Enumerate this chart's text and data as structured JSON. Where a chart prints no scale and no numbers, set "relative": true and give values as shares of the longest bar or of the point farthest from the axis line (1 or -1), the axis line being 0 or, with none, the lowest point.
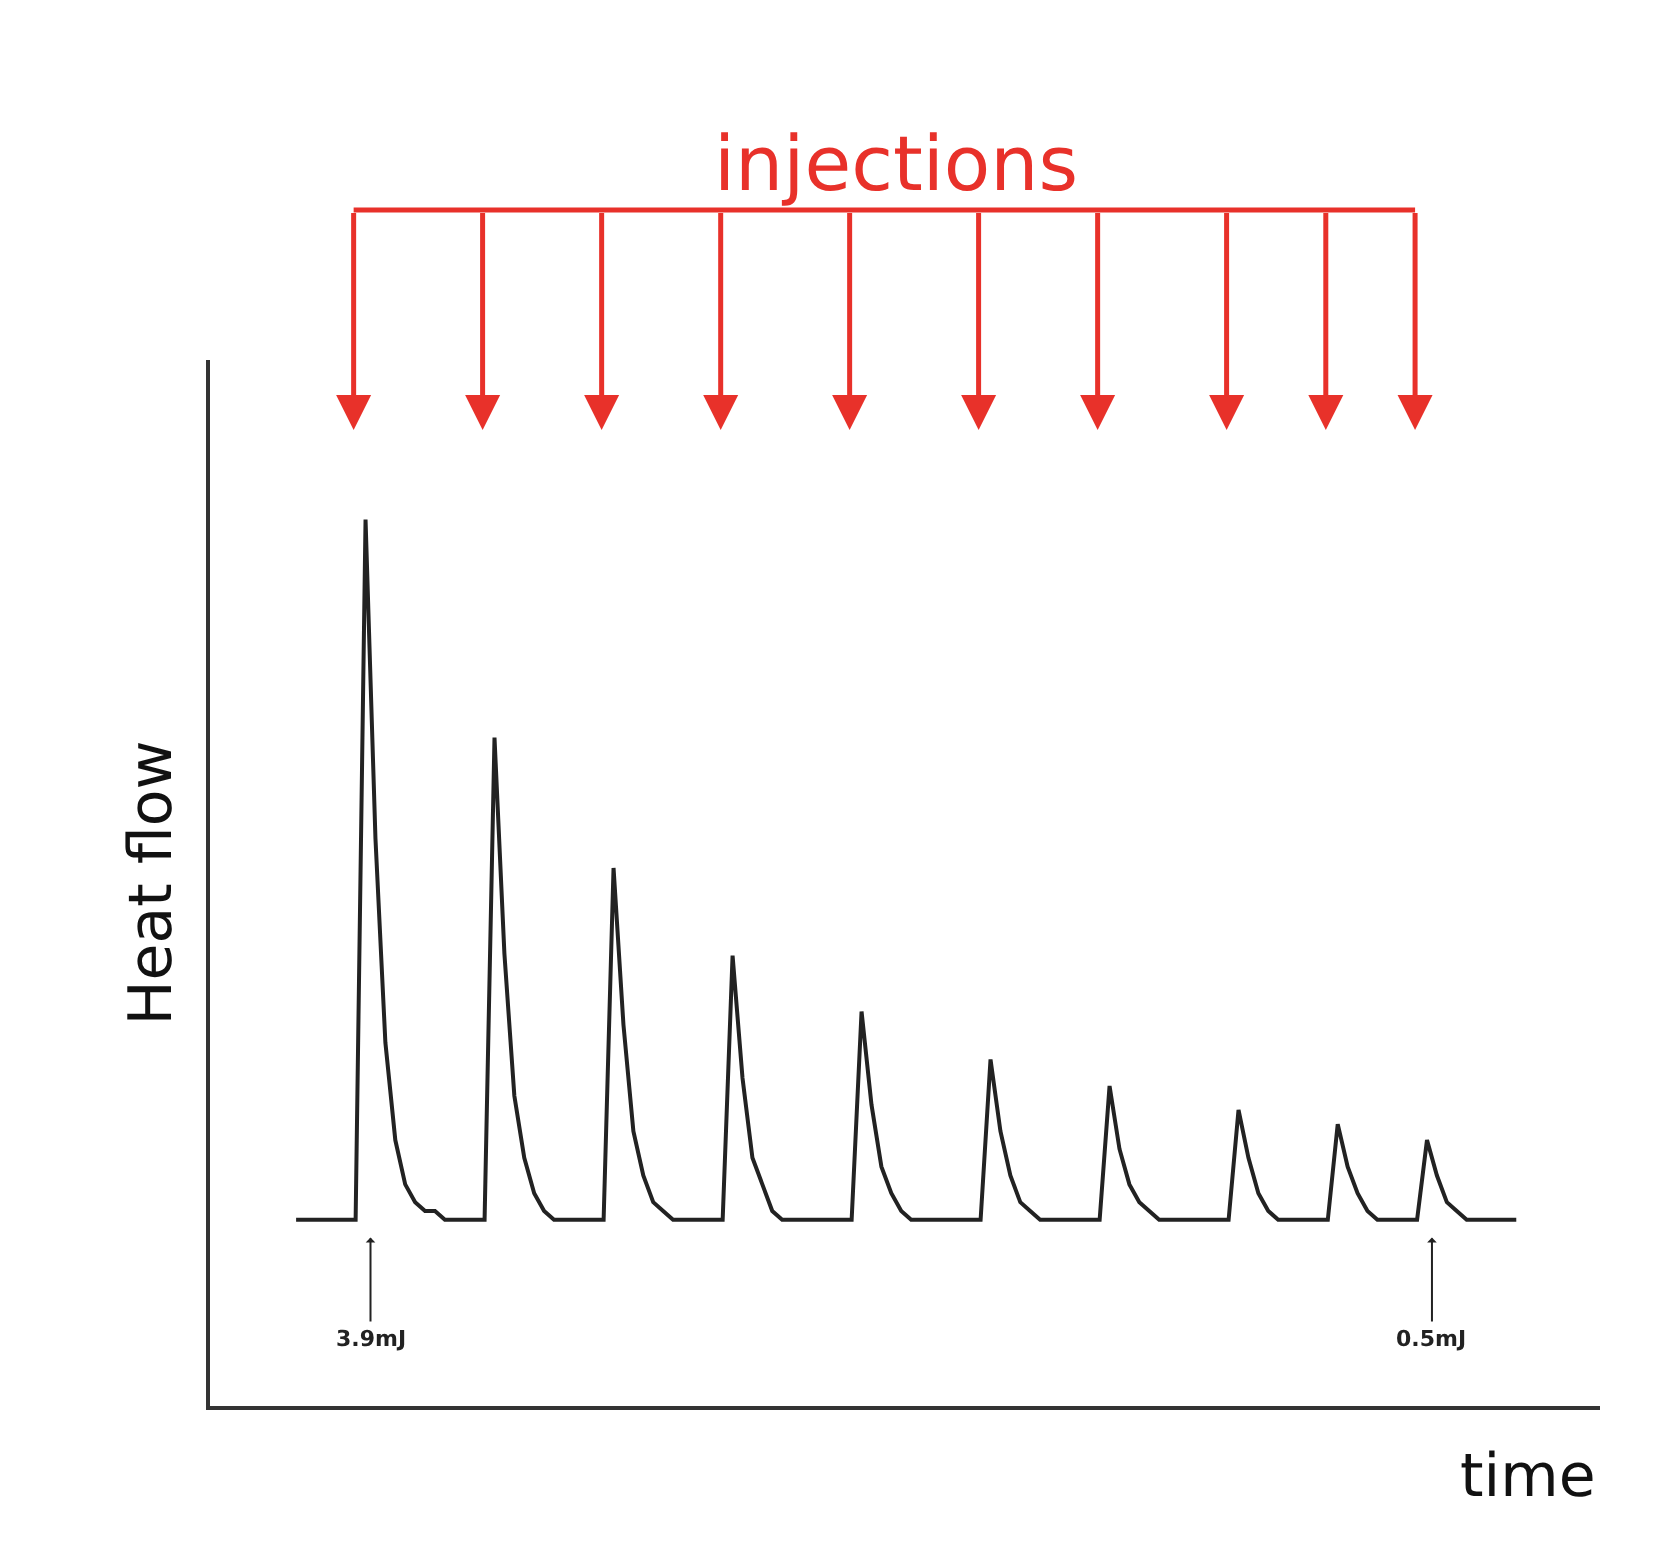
{
  "chart_data": {
    "type": "line",
    "relative": true,
    "title": "injections",
    "xlabel": "time",
    "ylabel": "Heat flow",
    "categories": [
      null,
      null,
      null,
      null,
      null,
      null,
      null,
      null,
      null,
      null,
      null,
      null,
      null,
      null,
      null,
      null,
      null,
      null,
      null,
      null,
      null,
      null,
      null,
      null,
      null,
      null,
      null,
      null,
      null,
      null,
      null,
      null,
      null,
      null,
      null,
      null,
      null,
      null,
      null,
      null,
      null,
      null,
      null,
      null,
      null,
      null,
      null,
      null,
      null,
      null,
      null,
      null,
      null,
      null,
      null,
      null,
      null,
      null,
      null,
      null,
      null,
      null,
      null,
      null,
      null,
      null,
      null,
      null,
      null,
      null,
      null,
      null,
      null,
      null,
      null,
      null,
      null,
      null,
      null,
      null,
      null,
      null,
      null,
      null,
      null,
      null,
      null,
      null,
      null,
      null,
      null,
      null,
      null,
      null,
      null,
      null,
      null,
      null,
      null,
      null,
      null,
      null,
      null,
      null,
      null,
      null,
      null,
      null,
      null,
      null,
      null,
      null,
      null,
      null,
      null,
      null,
      null,
      null,
      null,
      null,
      null,
      null,
      null,
      null
    ],
    "series": [
      {
        "color": "#222222",
        "values": [
          0.21,
          0.21,
          0.21,
          0.21,
          0.21,
          0.21,
          0.21,
          1.0,
          0.64,
          0.41,
          0.3,
          0.25,
          0.23,
          0.22,
          0.22,
          0.21,
          0.21,
          0.21,
          0.21,
          0.21,
          0.754,
          0.51,
          0.35,
          0.28,
          0.24,
          0.22,
          0.21,
          0.21,
          0.21,
          0.21,
          0.21,
          0.21,
          0.607,
          0.43,
          0.31,
          0.26,
          0.23,
          0.22,
          0.21,
          0.21,
          0.21,
          0.21,
          0.21,
          0.21,
          0.508,
          0.37,
          0.28,
          0.25,
          0.22,
          0.21,
          0.21,
          0.21,
          0.21,
          0.21,
          0.21,
          0.21,
          0.21,
          0.445,
          0.34,
          0.27,
          0.24,
          0.22,
          0.21,
          0.21,
          0.21,
          0.21,
          0.21,
          0.21,
          0.21,
          0.21,
          0.391,
          0.31,
          0.26,
          0.23,
          0.22,
          0.21,
          0.21,
          0.21,
          0.21,
          0.21,
          0.21,
          0.21,
          0.361,
          0.29,
          0.25,
          0.23,
          0.22,
          0.21,
          0.21,
          0.21,
          0.21,
          0.21,
          0.21,
          0.21,
          0.21,
          0.334,
          0.28,
          0.24,
          0.22,
          0.21,
          0.21,
          0.21,
          0.21,
          0.21,
          0.21,
          0.318,
          0.27,
          0.24,
          0.22,
          0.21,
          0.21,
          0.21,
          0.21,
          0.21,
          0.3,
          0.26,
          0.23,
          0.22,
          0.21,
          0.21,
          0.21,
          0.21,
          0.21,
          0.21
        ]
      }
    ],
    "annotations": [
      "3.9mJ",
      "0.5mJ"
    ],
    "marker": "none",
    "line_style": "solid"
  }
}
